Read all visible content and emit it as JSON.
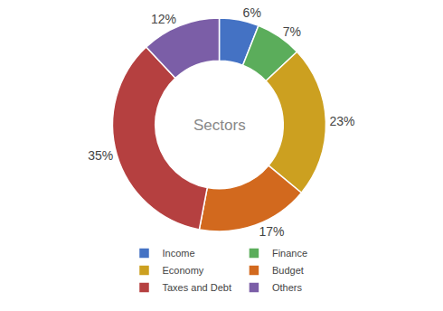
{
  "chart_data": {
    "type": "donut",
    "categories": [
      "Income",
      "Finance",
      "Economy",
      "Budget",
      "Taxes and Debt",
      "Others"
    ],
    "values": [
      6,
      7,
      23,
      17,
      35,
      12
    ],
    "value_labels": [
      "6%",
      "7%",
      "23%",
      "17%",
      "35%",
      "12%"
    ],
    "colors": [
      "#4472C4",
      "#5BAD5B",
      "#CCA020",
      "#D2691E",
      "#B54040",
      "#7B5EA7"
    ],
    "annotations": [
      "Sectors"
    ],
    "data_labels": true,
    "legend": "bottom"
  }
}
